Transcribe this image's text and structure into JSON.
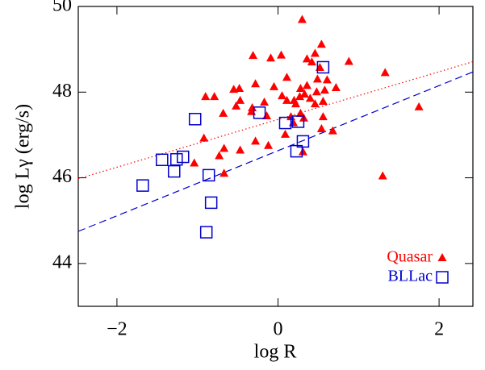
{
  "chart_data": {
    "type": "scatter",
    "x_label": "log R",
    "y_label": "log Lγ (erg/s)",
    "xlim": [
      -2.48,
      2.42
    ],
    "ylim": [
      43,
      50
    ],
    "xticks": [
      {
        "value": -2,
        "label": "−2"
      },
      0,
      2
    ],
    "yticks": [
      44,
      46,
      48,
      50
    ],
    "legend": "lower right",
    "series": [
      {
        "name": "Quasar",
        "color": "#ff0000",
        "marker": "triangle",
        "x": [
          0.3,
          0.54,
          0.46,
          0.88,
          1.33,
          -0.31,
          -0.09,
          0.04,
          0.36,
          0.52,
          0.42,
          0.61,
          0.72,
          0.58,
          0.49,
          0.48,
          0.36,
          0.28,
          0.27,
          0.33,
          0.22,
          0.4,
          0.46,
          0.56,
          0.11,
          -0.05,
          0.05,
          -0.28,
          -0.48,
          -0.55,
          -0.79,
          -0.9,
          -0.68,
          -0.47,
          -0.52,
          -0.33,
          -0.14,
          -0.17,
          0.11,
          0.2,
          0.16,
          0.28,
          0.32,
          0.56,
          0.54,
          0.68,
          0.19,
          0.09,
          -0.12,
          -0.28,
          -0.47,
          -0.67,
          -0.73,
          -0.92,
          -1.04,
          -0.67,
          0.31,
          1.75,
          1.3,
          -0.32
        ],
        "values": [
          49.69,
          49.11,
          48.9,
          48.71,
          48.45,
          48.85,
          48.79,
          48.86,
          48.77,
          48.57,
          48.7,
          48.28,
          48.1,
          48.04,
          48.3,
          48.0,
          48.15,
          48.08,
          47.89,
          47.95,
          47.72,
          47.85,
          47.72,
          47.78,
          48.34,
          48.12,
          47.91,
          48.19,
          48.08,
          48.06,
          47.89,
          47.89,
          47.5,
          47.8,
          47.67,
          47.54,
          47.44,
          47.76,
          47.8,
          47.8,
          47.42,
          47.5,
          47.39,
          47.42,
          47.14,
          47.09,
          47.28,
          47.01,
          46.75,
          46.85,
          46.64,
          46.68,
          46.51,
          46.92,
          46.34,
          46.1,
          46.6,
          47.65,
          46.04,
          47.63
        ]
      },
      {
        "name": "BLLac",
        "color": "#0000cc",
        "marker": "square",
        "x": [
          0.56,
          -1.03,
          -0.23,
          0.09,
          0.25,
          0.31,
          0.23,
          -1.44,
          -1.26,
          -1.18,
          -1.29,
          -1.68,
          -0.86,
          -0.83,
          -0.89
        ],
        "values": [
          48.58,
          47.37,
          47.52,
          47.28,
          47.31,
          46.85,
          46.62,
          46.42,
          46.43,
          46.49,
          46.15,
          45.82,
          46.06,
          45.42,
          44.73
        ]
      }
    ],
    "fit_lines": [
      {
        "color": "#ff0000",
        "style": "dotted",
        "x": [
          -2.48,
          2.42
        ],
        "values": [
          45.98,
          48.71
        ]
      },
      {
        "color": "#0000cc",
        "style": "dashed",
        "x": [
          -2.48,
          2.42
        ],
        "values": [
          44.75,
          48.47
        ]
      }
    ]
  }
}
